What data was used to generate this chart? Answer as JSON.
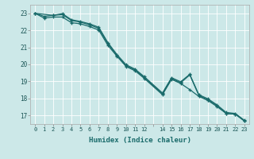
{
  "xlabel": "Humidex (Indice chaleur)",
  "bg_color": "#cce8e8",
  "grid_color": "#ffffff",
  "grid_color_minor": "#e8c8c8",
  "line_color": "#1a6b6b",
  "xlim": [
    -0.5,
    23.5
  ],
  "ylim": [
    16.5,
    23.5
  ],
  "xticks": [
    0,
    1,
    2,
    3,
    4,
    5,
    6,
    7,
    8,
    9,
    10,
    11,
    12,
    14,
    15,
    16,
    17,
    18,
    19,
    20,
    21,
    22,
    23
  ],
  "yticks": [
    17,
    18,
    19,
    20,
    21,
    22,
    23
  ],
  "series1_x": [
    0,
    1,
    2,
    3,
    4,
    5,
    6,
    7,
    8,
    9,
    10,
    11,
    12,
    14,
    15,
    16,
    17,
    18,
    19,
    20,
    21,
    22,
    23
  ],
  "series1_y": [
    23.0,
    22.72,
    22.78,
    22.78,
    22.45,
    22.38,
    22.22,
    22.02,
    21.12,
    20.48,
    19.88,
    19.62,
    19.18,
    18.22,
    19.12,
    18.88,
    18.52,
    18.12,
    17.88,
    17.52,
    17.12,
    17.08,
    16.68
  ],
  "series2_x": [
    0,
    1,
    2,
    3,
    4,
    5,
    6,
    7,
    8,
    9,
    10,
    11,
    12,
    14,
    15,
    16,
    17,
    18,
    19,
    20,
    21,
    22,
    23
  ],
  "series2_y": [
    23.0,
    22.82,
    22.88,
    22.92,
    22.58,
    22.48,
    22.32,
    22.12,
    21.22,
    20.52,
    19.92,
    19.68,
    19.22,
    18.28,
    19.18,
    18.92,
    19.38,
    18.18,
    17.92,
    17.58,
    17.12,
    17.08,
    16.68
  ],
  "series3_x": [
    0,
    2,
    3,
    4,
    5,
    6,
    7,
    8,
    9,
    10,
    11,
    12,
    14,
    15,
    16,
    17,
    18,
    19,
    20,
    21,
    22,
    23
  ],
  "series3_y": [
    23.0,
    22.88,
    22.98,
    22.62,
    22.52,
    22.38,
    22.18,
    21.28,
    20.58,
    19.98,
    19.72,
    19.28,
    18.32,
    19.22,
    18.98,
    19.42,
    18.22,
    17.98,
    17.62,
    17.18,
    17.12,
    16.72
  ],
  "marker": "+"
}
